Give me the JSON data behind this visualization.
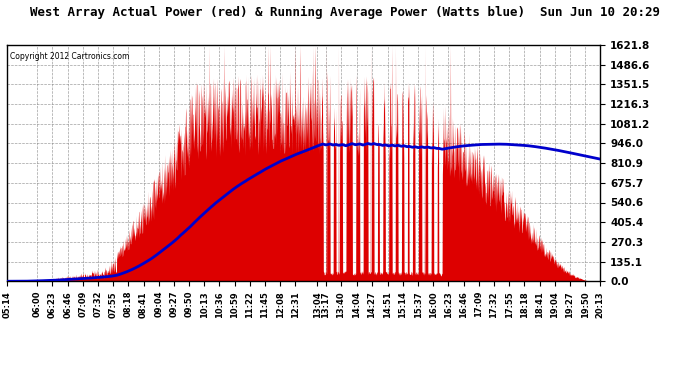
{
  "title": "West Array Actual Power (red) & Running Average Power (Watts blue)  Sun Jun 10 20:29",
  "copyright": "Copyright 2012 Cartronics.com",
  "bg_color": "#ffffff",
  "plot_bg_color": "#ffffff",
  "y_max": 1621.8,
  "y_min": 0.0,
  "y_ticks": [
    0.0,
    135.1,
    270.3,
    405.4,
    540.6,
    675.7,
    810.9,
    946.0,
    1081.2,
    1216.3,
    1351.5,
    1486.6,
    1621.8
  ],
  "x_labels": [
    "05:14",
    "06:00",
    "06:23",
    "06:46",
    "07:09",
    "07:32",
    "07:55",
    "08:18",
    "08:41",
    "09:04",
    "09:27",
    "09:50",
    "10:13",
    "10:36",
    "10:59",
    "11:22",
    "11:45",
    "12:08",
    "12:31",
    "13:04",
    "13:17",
    "13:40",
    "14:04",
    "14:27",
    "14:51",
    "15:14",
    "15:37",
    "16:00",
    "16:23",
    "16:46",
    "17:09",
    "17:32",
    "17:55",
    "18:18",
    "18:41",
    "19:04",
    "19:27",
    "19:50",
    "20:13"
  ],
  "red_color": "#dd0000",
  "blue_color": "#0000cc",
  "grid_color": "#888888",
  "grid_style": "--"
}
